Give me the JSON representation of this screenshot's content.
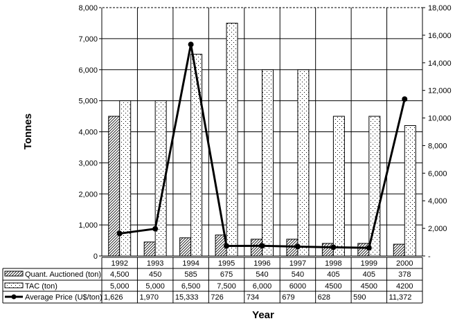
{
  "chart_data": {
    "type": "bar",
    "categories": [
      "1992",
      "1993",
      "1994",
      "1995",
      "1996",
      "1997",
      "1998",
      "1999",
      "2000"
    ],
    "xlabel": "Year",
    "ylabel": "Tonnes",
    "ylim": [
      0,
      8000
    ],
    "y2lim": [
      0,
      18000
    ],
    "yticks": [
      "0",
      "1,000",
      "2,000",
      "3,000",
      "4,000",
      "5,000",
      "6,000",
      "7,000",
      "8,000"
    ],
    "y2ticks": [
      "-",
      "2,000",
      "4,000",
      "6,000",
      "8,000",
      "10,000",
      "12,000",
      "14,000",
      "16,000",
      "18,000"
    ],
    "grid": true,
    "legend": "data-table",
    "series": [
      {
        "name": "Quant. Auctioned (ton)",
        "kind": "bar",
        "pattern": "diagonal-hatch",
        "axis": "left",
        "values": [
          4500,
          450,
          585,
          675,
          540,
          540,
          405,
          405,
          378
        ],
        "labels": [
          "4,500",
          "450",
          "585",
          "675",
          "540",
          "540",
          "405",
          "405",
          "378"
        ]
      },
      {
        "name": "TAC (ton)",
        "kind": "bar",
        "pattern": "dots",
        "axis": "left",
        "values": [
          5000,
          5000,
          6500,
          7500,
          6000,
          6000,
          4500,
          4500,
          4200
        ],
        "labels": [
          "5,000",
          "5,000",
          "6,500",
          "7,500",
          "6,000",
          "6000",
          "4500",
          "4500",
          "4200"
        ]
      },
      {
        "name": "Average Price (U$/ton)",
        "kind": "line",
        "axis": "right",
        "values": [
          1626,
          1970,
          15333,
          726,
          734,
          679,
          628,
          590,
          11372
        ],
        "labels": [
          "1,626",
          "1,970",
          "15,333",
          "726",
          "734",
          "679",
          "628",
          "590",
          "11,372"
        ]
      }
    ]
  }
}
